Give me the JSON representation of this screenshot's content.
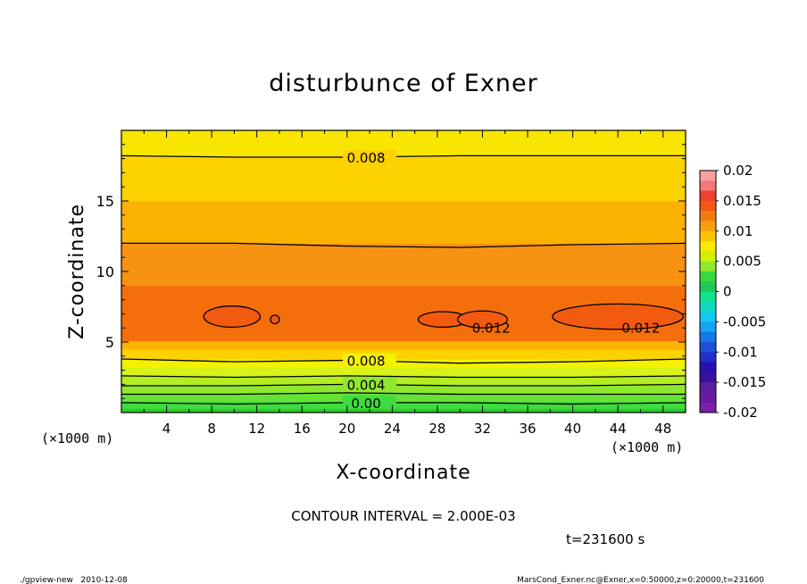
{
  "chart_data": {
    "type": "contour",
    "title": "disturbunce of Exner",
    "xlabel": "X-coordinate",
    "ylabel": "Z-coordinate",
    "x_unit": "(×1000 m)",
    "y_unit": "(×1000 m)",
    "xlim": [
      0,
      50
    ],
    "ylim": [
      0,
      20
    ],
    "xticks": [
      4,
      8,
      12,
      16,
      20,
      24,
      28,
      32,
      36,
      40,
      44,
      48
    ],
    "yticks": [
      5,
      10,
      15
    ],
    "contour_interval_text": "CONTOUR INTERVAL = 2.000E-03",
    "time_text": "t=231600 s",
    "footer_left": "./gpview-new   2010-12-08",
    "footer_right": "MarsCond_Exner.nc@Exner,x=0:50000,z=0:20000,t=231600",
    "colorbar": {
      "min": -0.02,
      "max": 0.02,
      "ticks": [
        "0.02",
        "0.015",
        "0.01",
        "0.005",
        "0",
        "-0.005",
        "-0.01",
        "-0.015",
        "-0.02"
      ]
    },
    "fill_bands": [
      {
        "z_from": 0.0,
        "z_to": 0.3,
        "value_range": "0.0025–0.003",
        "color": "#2ecc2e"
      },
      {
        "z_from": 0.3,
        "z_to": 0.8,
        "value_range": "0.002–0.003",
        "color": "#3fdc3f"
      },
      {
        "z_from": 0.8,
        "z_to": 1.4,
        "value_range": "0.003–0.004",
        "color": "#66e236"
      },
      {
        "z_from": 1.4,
        "z_to": 2.0,
        "value_range": "0.004–0.005",
        "color": "#8fe82e"
      },
      {
        "z_from": 2.0,
        "z_to": 2.6,
        "value_range": "0.005–0.006",
        "color": "#b4ee22"
      },
      {
        "z_from": 2.6,
        "z_to": 3.2,
        "value_range": "0.006–0.007",
        "color": "#d8f21a"
      },
      {
        "z_from": 3.2,
        "z_to": 3.8,
        "value_range": "0.007–0.008",
        "color": "#f3f000"
      },
      {
        "z_from": 3.8,
        "z_to": 4.5,
        "value_range": "0.008–0.009",
        "color": "#fcd200"
      },
      {
        "z_from": 4.5,
        "z_to": 5.1,
        "value_range": "0.009–0.010",
        "color": "#fbb200"
      },
      {
        "z_from": 5.1,
        "z_to": 9.0,
        "value_range": "0.011–0.012",
        "color": "#f46e0c"
      },
      {
        "z_from": 9.0,
        "z_to": 12.0,
        "value_range": "0.010–0.011",
        "color": "#f79212"
      },
      {
        "z_from": 12.0,
        "z_to": 15.0,
        "value_range": "0.009–0.010",
        "color": "#fbb200"
      },
      {
        "z_from": 15.0,
        "z_to": 18.2,
        "value_range": "0.008–0.009",
        "color": "#fcd200"
      },
      {
        "z_from": 18.2,
        "z_to": 20.0,
        "value_range": "0.007–0.008",
        "color": "#f8e600"
      }
    ],
    "contours": [
      {
        "level": "0.008",
        "z": [
          18.2,
          18.1,
          18.1,
          18.2,
          18.2,
          18.2
        ],
        "x": [
          0,
          10,
          20,
          30,
          40,
          50
        ],
        "label": "0.008"
      },
      {
        "level": "0.010",
        "z": [
          12.0,
          12.0,
          11.8,
          11.7,
          11.9,
          12.0
        ],
        "x": [
          0,
          10,
          20,
          30,
          40,
          50
        ],
        "label": ""
      },
      {
        "level": "0.008",
        "z": [
          3.8,
          3.6,
          3.7,
          3.5,
          3.6,
          3.8
        ],
        "x": [
          0,
          10,
          20,
          30,
          40,
          50
        ],
        "label": "0.008"
      },
      {
        "level": "0.006",
        "z": [
          2.6,
          2.5,
          2.6,
          2.5,
          2.5,
          2.6
        ],
        "x": [
          0,
          10,
          20,
          30,
          40,
          50
        ],
        "label": ""
      },
      {
        "level": "0.004",
        "z": [
          1.9,
          1.9,
          2.0,
          1.9,
          1.9,
          2.0
        ],
        "x": [
          0,
          10,
          20,
          30,
          40,
          50
        ],
        "label": "0.004"
      },
      {
        "level": "0.002",
        "z": [
          1.3,
          1.3,
          1.4,
          1.3,
          1.3,
          1.3
        ],
        "x": [
          0,
          10,
          20,
          30,
          40,
          50
        ],
        "label": ""
      },
      {
        "level": "0.00",
        "z": [
          0.7,
          0.6,
          0.7,
          0.7,
          0.6,
          0.7
        ],
        "x": [
          0,
          10,
          20,
          30,
          40,
          50
        ],
        "label": "0.00"
      }
    ],
    "closed_contours": [
      {
        "level": "0.012",
        "cx": 9.8,
        "cz": 6.8,
        "rx": 2.5,
        "rz": 0.75,
        "label": ""
      },
      {
        "level": "0.012",
        "cx": 13.6,
        "cz": 6.6,
        "rx": 0.4,
        "rz": 0.3,
        "label": ""
      },
      {
        "level": "0.012",
        "cx": 28.5,
        "cz": 6.6,
        "rx": 2.2,
        "rz": 0.55,
        "label": ""
      },
      {
        "level": "0.012",
        "cx": 32.0,
        "cz": 6.6,
        "rx": 2.2,
        "rz": 0.6,
        "label": "0.012"
      },
      {
        "level": "0.012",
        "cx": 44.0,
        "cz": 6.8,
        "rx": 5.8,
        "rz": 0.9,
        "label": "0.012"
      }
    ]
  }
}
